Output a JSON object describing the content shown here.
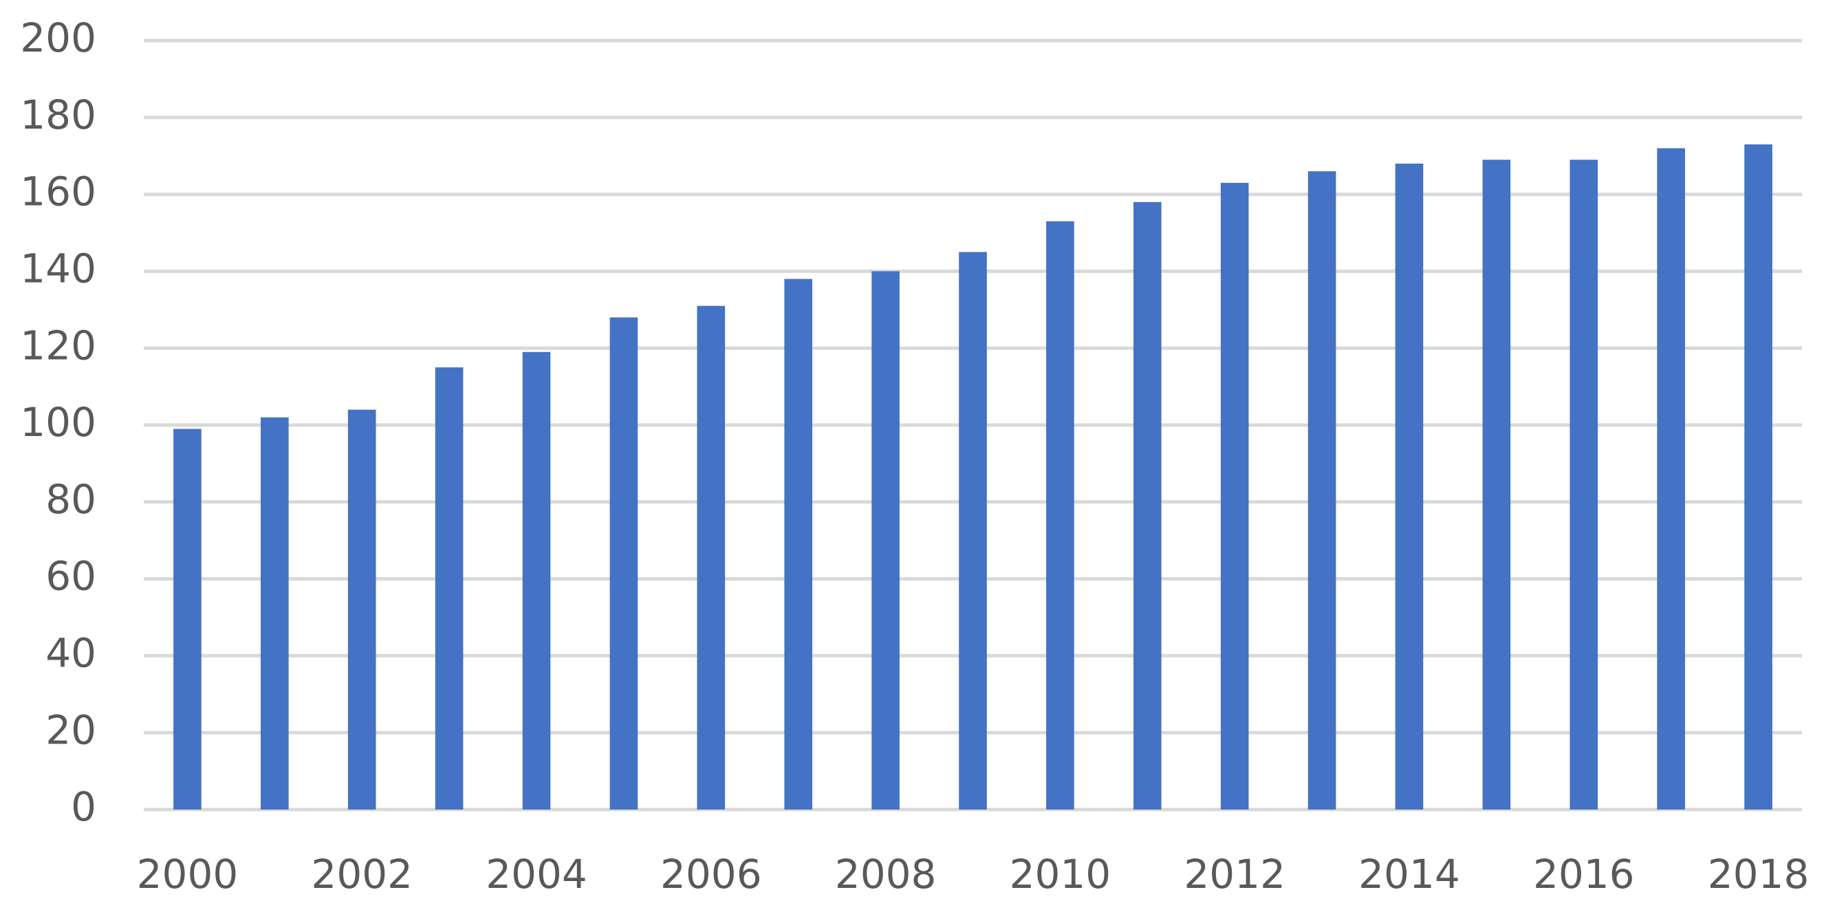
{
  "chart_data": {
    "type": "bar",
    "categories": [
      "2000",
      null,
      "2002",
      null,
      "2004",
      null,
      "2006",
      null,
      "2008",
      null,
      "2010",
      null,
      "2012",
      null,
      "2014",
      null,
      "2016",
      null,
      "2018"
    ],
    "values": [
      99,
      102,
      104,
      115,
      119,
      128,
      131,
      138,
      140,
      145,
      153,
      158,
      163,
      166,
      168,
      169,
      169,
      172,
      173
    ],
    "color": "#4472c4",
    "ylim": [
      0,
      200
    ],
    "yticks": [
      0,
      20,
      40,
      60,
      80,
      100,
      120,
      140,
      160,
      180,
      200
    ],
    "grid": true
  }
}
